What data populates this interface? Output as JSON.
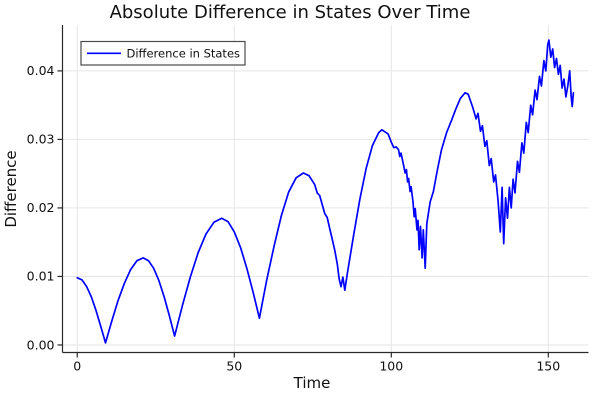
{
  "colors": {
    "line": "#0000ff",
    "grid": "#e6e6e6",
    "axis": "#2a2a2a",
    "text": "#111111",
    "legend_border": "#4a4a4a",
    "background": "#ffffff"
  },
  "chart_data": {
    "type": "line",
    "title": "Absolute Difference in States Over Time",
    "xlabel": "Time",
    "ylabel": "Difference",
    "xlim": [
      -4.7,
      162.8
    ],
    "ylim": [
      -0.0011,
      0.0467
    ],
    "x_ticks": [
      0,
      50,
      100,
      150
    ],
    "x_tick_labels": [
      "0",
      "50",
      "100",
      "150"
    ],
    "y_ticks": [
      0.0,
      0.01,
      0.02,
      0.03,
      0.04
    ],
    "y_tick_labels": [
      "0.00",
      "0.01",
      "0.02",
      "0.03",
      "0.04"
    ],
    "grid": true,
    "legend": {
      "position": "top-left",
      "entries": [
        {
          "label": "Difference in States",
          "color": "#0000ff"
        }
      ]
    },
    "series": [
      {
        "name": "Difference in States",
        "color": "#0000ff",
        "points": [
          [
            0,
            0.0098
          ],
          [
            1.5,
            0.0095
          ],
          [
            3,
            0.0085
          ],
          [
            4.5,
            0.007
          ],
          [
            6,
            0.005
          ],
          [
            7.5,
            0.0027
          ],
          [
            9,
            0.0003
          ],
          [
            11,
            0.0035
          ],
          [
            13,
            0.0065
          ],
          [
            15,
            0.009
          ],
          [
            17,
            0.011
          ],
          [
            19,
            0.0123
          ],
          [
            21,
            0.0127
          ],
          [
            22.7,
            0.0123
          ],
          [
            24.3,
            0.0112
          ],
          [
            26,
            0.0094
          ],
          [
            27.7,
            0.007
          ],
          [
            29.3,
            0.0043
          ],
          [
            31,
            0.0013
          ],
          [
            33.5,
            0.0058
          ],
          [
            36,
            0.0099
          ],
          [
            38.5,
            0.0135
          ],
          [
            41,
            0.0162
          ],
          [
            43.5,
            0.0179
          ],
          [
            46,
            0.0185
          ],
          [
            48,
            0.018
          ],
          [
            50,
            0.0165
          ],
          [
            52,
            0.0142
          ],
          [
            54,
            0.0112
          ],
          [
            56,
            0.0077
          ],
          [
            58,
            0.0039
          ],
          [
            60.3,
            0.0094
          ],
          [
            62.7,
            0.0145
          ],
          [
            65,
            0.0189
          ],
          [
            67.3,
            0.0223
          ],
          [
            69.7,
            0.0244
          ],
          [
            72,
            0.0251
          ],
          [
            73.8,
            0.0247
          ],
          [
            75.6,
            0.0234
          ],
          [
            76.4,
            0.0222
          ],
          [
            77.2,
            0.0218
          ],
          [
            78,
            0.0205
          ],
          [
            78.8,
            0.0192
          ],
          [
            79.6,
            0.0186
          ],
          [
            80.4,
            0.017
          ],
          [
            81.2,
            0.0154
          ],
          [
            82,
            0.0138
          ],
          [
            82.8,
            0.0118
          ],
          [
            83.4,
            0.0096
          ],
          [
            84,
            0.0085
          ],
          [
            84.6,
            0.0099
          ],
          [
            85.2,
            0.008
          ],
          [
            86,
            0.0104
          ],
          [
            88,
            0.016
          ],
          [
            90,
            0.0213
          ],
          [
            92,
            0.0258
          ],
          [
            94,
            0.0291
          ],
          [
            96,
            0.031
          ],
          [
            97,
            0.0314
          ],
          [
            99,
            0.0308
          ],
          [
            100,
            0.0296
          ],
          [
            100.8,
            0.0288
          ],
          [
            101.6,
            0.0289
          ],
          [
            102.3,
            0.0285
          ],
          [
            102.7,
            0.0275
          ],
          [
            103.1,
            0.028
          ],
          [
            103.9,
            0.0263
          ],
          [
            104.4,
            0.0251
          ],
          [
            104.8,
            0.0256
          ],
          [
            105.2,
            0.0238
          ],
          [
            105.5,
            0.0243
          ],
          [
            106,
            0.0224
          ],
          [
            106.3,
            0.0231
          ],
          [
            106.9,
            0.0209
          ],
          [
            107.3,
            0.0187
          ],
          [
            107.6,
            0.0199
          ],
          [
            108.2,
            0.0168
          ],
          [
            108.5,
            0.0182
          ],
          [
            108.9,
            0.0139
          ],
          [
            109.3,
            0.0173
          ],
          [
            109.8,
            0.0127
          ],
          [
            110.2,
            0.0168
          ],
          [
            110.8,
            0.0112
          ],
          [
            111.3,
            0.0177
          ],
          [
            112.4,
            0.0209
          ],
          [
            113.4,
            0.0224
          ],
          [
            114.5,
            0.0251
          ],
          [
            116,
            0.0285
          ],
          [
            117.6,
            0.031
          ],
          [
            119.2,
            0.0328
          ],
          [
            120.5,
            0.0344
          ],
          [
            122,
            0.036
          ],
          [
            123.5,
            0.0368
          ],
          [
            124.5,
            0.0366
          ],
          [
            126,
            0.0346
          ],
          [
            127,
            0.033
          ],
          [
            127.6,
            0.0338
          ],
          [
            128.4,
            0.0312
          ],
          [
            129,
            0.032
          ],
          [
            129.8,
            0.029
          ],
          [
            130.4,
            0.0298
          ],
          [
            131.2,
            0.0262
          ],
          [
            131.8,
            0.0272
          ],
          [
            132.6,
            0.0238
          ],
          [
            133.2,
            0.0248
          ],
          [
            134,
            0.021
          ],
          [
            134.7,
            0.0165
          ],
          [
            135.3,
            0.023
          ],
          [
            135.8,
            0.0148
          ],
          [
            136.4,
            0.0215
          ],
          [
            137,
            0.0185
          ],
          [
            137.6,
            0.023
          ],
          [
            138.2,
            0.02
          ],
          [
            138.8,
            0.0242
          ],
          [
            139.4,
            0.0222
          ],
          [
            140.2,
            0.0268
          ],
          [
            140.8,
            0.0252
          ],
          [
            141.6,
            0.0295
          ],
          [
            142.2,
            0.028
          ],
          [
            143,
            0.0325
          ],
          [
            143.6,
            0.031
          ],
          [
            144.4,
            0.035
          ],
          [
            145,
            0.0336
          ],
          [
            145.8,
            0.0372
          ],
          [
            146.4,
            0.0358
          ],
          [
            147.2,
            0.0392
          ],
          [
            147.8,
            0.0378
          ],
          [
            148.6,
            0.0415
          ],
          [
            149.2,
            0.04
          ],
          [
            149.8,
            0.0438
          ],
          [
            150.2,
            0.0445
          ],
          [
            150.8,
            0.042
          ],
          [
            151.4,
            0.0432
          ],
          [
            152,
            0.0405
          ],
          [
            152.6,
            0.0418
          ],
          [
            153.2,
            0.0395
          ],
          [
            153.8,
            0.0408
          ],
          [
            154.4,
            0.0375
          ],
          [
            155,
            0.0388
          ],
          [
            155.6,
            0.0362
          ],
          [
            156.2,
            0.0378
          ],
          [
            156.8,
            0.04
          ],
          [
            157.3,
            0.0362
          ],
          [
            157.6,
            0.0348
          ],
          [
            158,
            0.0368
          ]
        ]
      }
    ]
  }
}
